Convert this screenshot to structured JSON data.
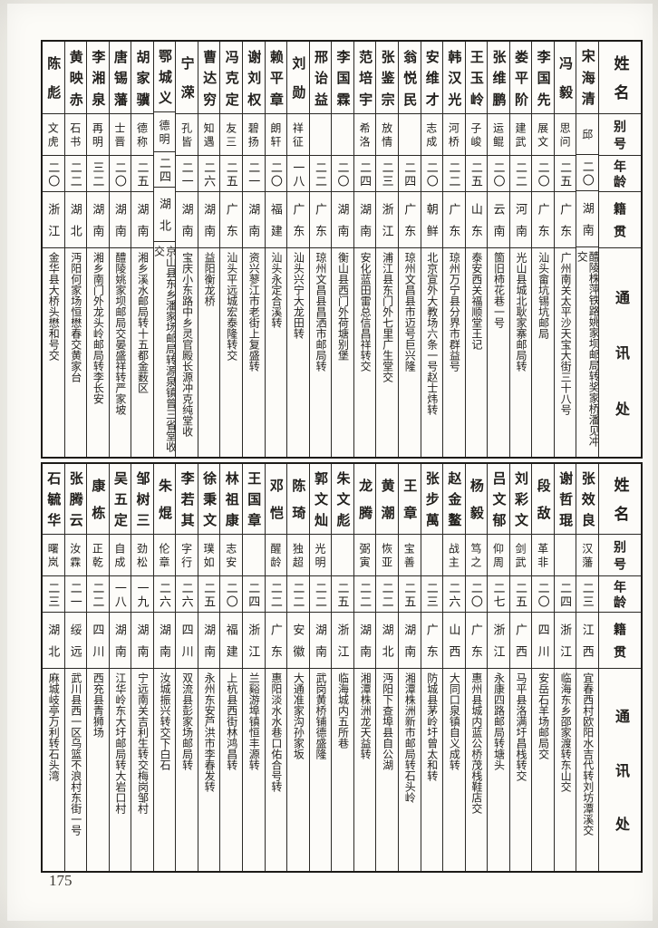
{
  "page_number": "175",
  "headers": {
    "name": "姓名",
    "alias": "别号",
    "age": "年龄",
    "native": "籍贯",
    "address": "通讯处"
  },
  "tables": [
    {
      "entries": [
        {
          "name": "宋海清",
          "alias": "邱",
          "age": "二〇",
          "native": "湖南",
          "address": "醴陵株萍铁路姚家坝邮局转奖家桥潘见冲交"
        },
        {
          "name": "冯毅",
          "alias": "思问",
          "age": "二五",
          "native": "广东",
          "address": "广州南关太平沙天宝大街三十八号"
        },
        {
          "name": "李国先",
          "alias": "展文",
          "age": "二〇",
          "native": "广东",
          "address": "汕头畲坑锡坑邮局"
        },
        {
          "name": "娄平阶",
          "alias": "建武",
          "age": "二二",
          "native": "河南",
          "address": "光山县城北耿家寨邮局转"
        },
        {
          "name": "张维鹏",
          "alias": "运鲲",
          "age": "二〇",
          "native": "云南",
          "address": "箇旧柿花巷一号"
        },
        {
          "name": "王玉岭",
          "alias": "子峻",
          "age": "二五",
          "native": "山东",
          "address": "泰安西关福顺堂王记"
        },
        {
          "name": "韩汉光",
          "alias": "河桥",
          "age": "二二",
          "native": "广东",
          "address": "琼州万宁县分界市群益号"
        },
        {
          "name": "安维才",
          "alias": "志成",
          "age": "二〇",
          "native": "朝鲜",
          "address": "北京宣外大教场六条一号赵士炜转"
        },
        {
          "name": "翁悦民",
          "alias": "",
          "age": "二四",
          "native": "广东",
          "address": "琼州文昌县市迈号巨兴隆"
        },
        {
          "name": "张鉴宗",
          "alias": "放情",
          "age": "二三",
          "native": "浙江",
          "address": "浦江县东门外七里广生堂交"
        },
        {
          "name": "范培宇",
          "alias": "希洛",
          "age": "二四",
          "native": "湖南",
          "address": "安化蓝田雷总信昌祥转交"
        },
        {
          "name": "李国霖",
          "alias": "",
          "age": "二〇",
          "native": "湖南",
          "address": "衡山县西门外荷塘别堡"
        },
        {
          "name": "邢诒益",
          "alias": "",
          "age": "二二",
          "native": "广东",
          "address": "琼州文昌县昌洒市邮局转"
        },
        {
          "name": "刘勋",
          "alias": "祥征",
          "age": "一八",
          "native": "广东",
          "address": "汕头兴宁大龙田转"
        },
        {
          "name": "赖平章",
          "alias": "朗轩",
          "age": "二〇",
          "native": "福建",
          "address": "汕头永定合溪转"
        },
        {
          "name": "谢刘权",
          "alias": "碧扬",
          "age": "二一",
          "native": "湖南",
          "address": "资兴蓼江市老街上复盛转"
        },
        {
          "name": "冯克定",
          "alias": "友三",
          "age": "二五",
          "native": "广东",
          "address": "汕头平远城宏泰隆转交"
        },
        {
          "name": "曹达穷",
          "alias": "知遇",
          "age": "二六",
          "native": "湖南",
          "address": "益阳衡龙桥"
        },
        {
          "name": "宁溁",
          "alias": "孔皆",
          "age": "二一",
          "native": "湖南",
          "address": "宝庆小东路中乡灵官殿长源冲克纯堂收"
        },
        {
          "name": "鄂城义",
          "alias": "德明",
          "age": "二四",
          "native": "湖北",
          "address": "京山县东乡潘家场邮局转源泉镇曾三省堂收交"
        },
        {
          "name": "胡家骥",
          "alias": "德称",
          "age": "二五",
          "native": "湖南",
          "address": "湘乡溪水邮局转十五都金薮区"
        },
        {
          "name": "唐锡藩",
          "alias": "士晋",
          "age": "二〇",
          "native": "湖南",
          "address": "醴陵姚家坝邮局交晏盛祥转严家坡"
        },
        {
          "name": "李湘泉",
          "alias": "再明",
          "age": "三二",
          "native": "湖南",
          "address": "湘乡南门外龙头岭邮局转李长安"
        },
        {
          "name": "黄映赤",
          "alias": "石书",
          "age": "二二",
          "native": "湖北",
          "address": "沔阳何家场恒懋春交黄家台"
        },
        {
          "name": "陈彪",
          "alias": "文虎",
          "age": "二〇",
          "native": "浙江",
          "address": "金华县大桥头懋和号交"
        }
      ]
    },
    {
      "entries": [
        {
          "name": "张效良",
          "alias": "汉藩",
          "age": "二三",
          "native": "江西",
          "address": "宜春西村欧阳水吉代转刘坊潭溪交"
        },
        {
          "name": "谢哲琨",
          "alias": "",
          "age": "二四",
          "native": "浙江",
          "address": "临海东乡邵家渡转东山交"
        },
        {
          "name": "段敌",
          "alias": "革非",
          "age": "二〇",
          "native": "四川",
          "address": "安岳石羊场邮局交"
        },
        {
          "name": "刘彩文",
          "alias": "剑武",
          "age": "二五",
          "native": "广西",
          "address": "马平县洛满圩昌栈转交"
        },
        {
          "name": "吕文郁",
          "alias": "仰周",
          "age": "二七",
          "native": "浙江",
          "address": "永康四路邮局转塘头"
        },
        {
          "name": "杨毅",
          "alias": "笃之",
          "age": "二〇",
          "native": "广东",
          "address": "惠州县城内蓝公桥茂栈鞋店交"
        },
        {
          "name": "赵金鳌",
          "alias": "战主",
          "age": "二六",
          "native": "山西",
          "address": "大同口泉镇自义成转"
        },
        {
          "name": "张步萬",
          "alias": "",
          "age": "二三",
          "native": "广东",
          "address": "防城县茅岭圩曾太和转"
        },
        {
          "name": "王章",
          "alias": "宝善",
          "age": "二五",
          "native": "湖南",
          "address": "湘潭株洲新市邮局转石头岭"
        },
        {
          "name": "黄潮",
          "alias": "恢亚",
          "age": "二二",
          "native": "湖北",
          "address": "沔阳下查埠县自公湖"
        },
        {
          "name": "龙腾",
          "alias": "弼寅",
          "age": "二二",
          "native": "湖南",
          "address": "湘潭株洲龙天益转"
        },
        {
          "name": "朱文彪",
          "alias": "",
          "age": "二五",
          "native": "浙江",
          "address": "临海城内五所巷"
        },
        {
          "name": "郭文灿",
          "alias": "光明",
          "age": "二二",
          "native": "湖南",
          "address": "武岗黄桥铺德盛隆"
        },
        {
          "name": "陈琦",
          "alias": "独超",
          "age": "二二",
          "native": "安徽",
          "address": "大通准家沟孙家坂"
        },
        {
          "name": "邓恺",
          "alias": "醒龄",
          "age": "二二",
          "native": "广东",
          "address": "惠阳淡水水巷口佑合号转"
        },
        {
          "name": "王国章",
          "alias": "",
          "age": "二四",
          "native": "浙江",
          "address": "兰谿游埠镇恒丰源转"
        },
        {
          "name": "林祖康",
          "alias": "志安",
          "age": "二〇",
          "native": "福建",
          "address": "上杭县西街林鸿昌转"
        },
        {
          "name": "徐秉文",
          "alias": "璞如",
          "age": "二五",
          "native": "湖南",
          "address": "永州东安芦洪市李春发转"
        },
        {
          "name": "李若其",
          "alias": "字行",
          "age": "二六",
          "native": "四川",
          "address": "双流县彭家场邮局转"
        },
        {
          "name": "朱焜",
          "alias": "伦章",
          "age": "二六",
          "native": "湖南",
          "address": "汝城振兴转交下白石"
        },
        {
          "name": "邹树三",
          "alias": "劲松",
          "age": "一九",
          "native": "湖南",
          "address": "宁远南关吉利生转交梅岗邹村"
        },
        {
          "name": "吴五定",
          "alias": "自成",
          "age": "一八",
          "native": "湖南",
          "address": "江华岭东大圩邮局转大岩口村"
        },
        {
          "name": "康栋",
          "alias": "正乾",
          "age": "二二",
          "native": "四川",
          "address": "西充县青狮场"
        },
        {
          "name": "张腾云",
          "alias": "汝霖",
          "age": "二一",
          "native": "绥远",
          "address": "武川县西一区乌篮不浪村东街一号"
        },
        {
          "name": "石毓华",
          "alias": "曙岚",
          "age": "二三",
          "native": "湖北",
          "address": "麻城岐亭万利转石头湾"
        }
      ]
    }
  ]
}
